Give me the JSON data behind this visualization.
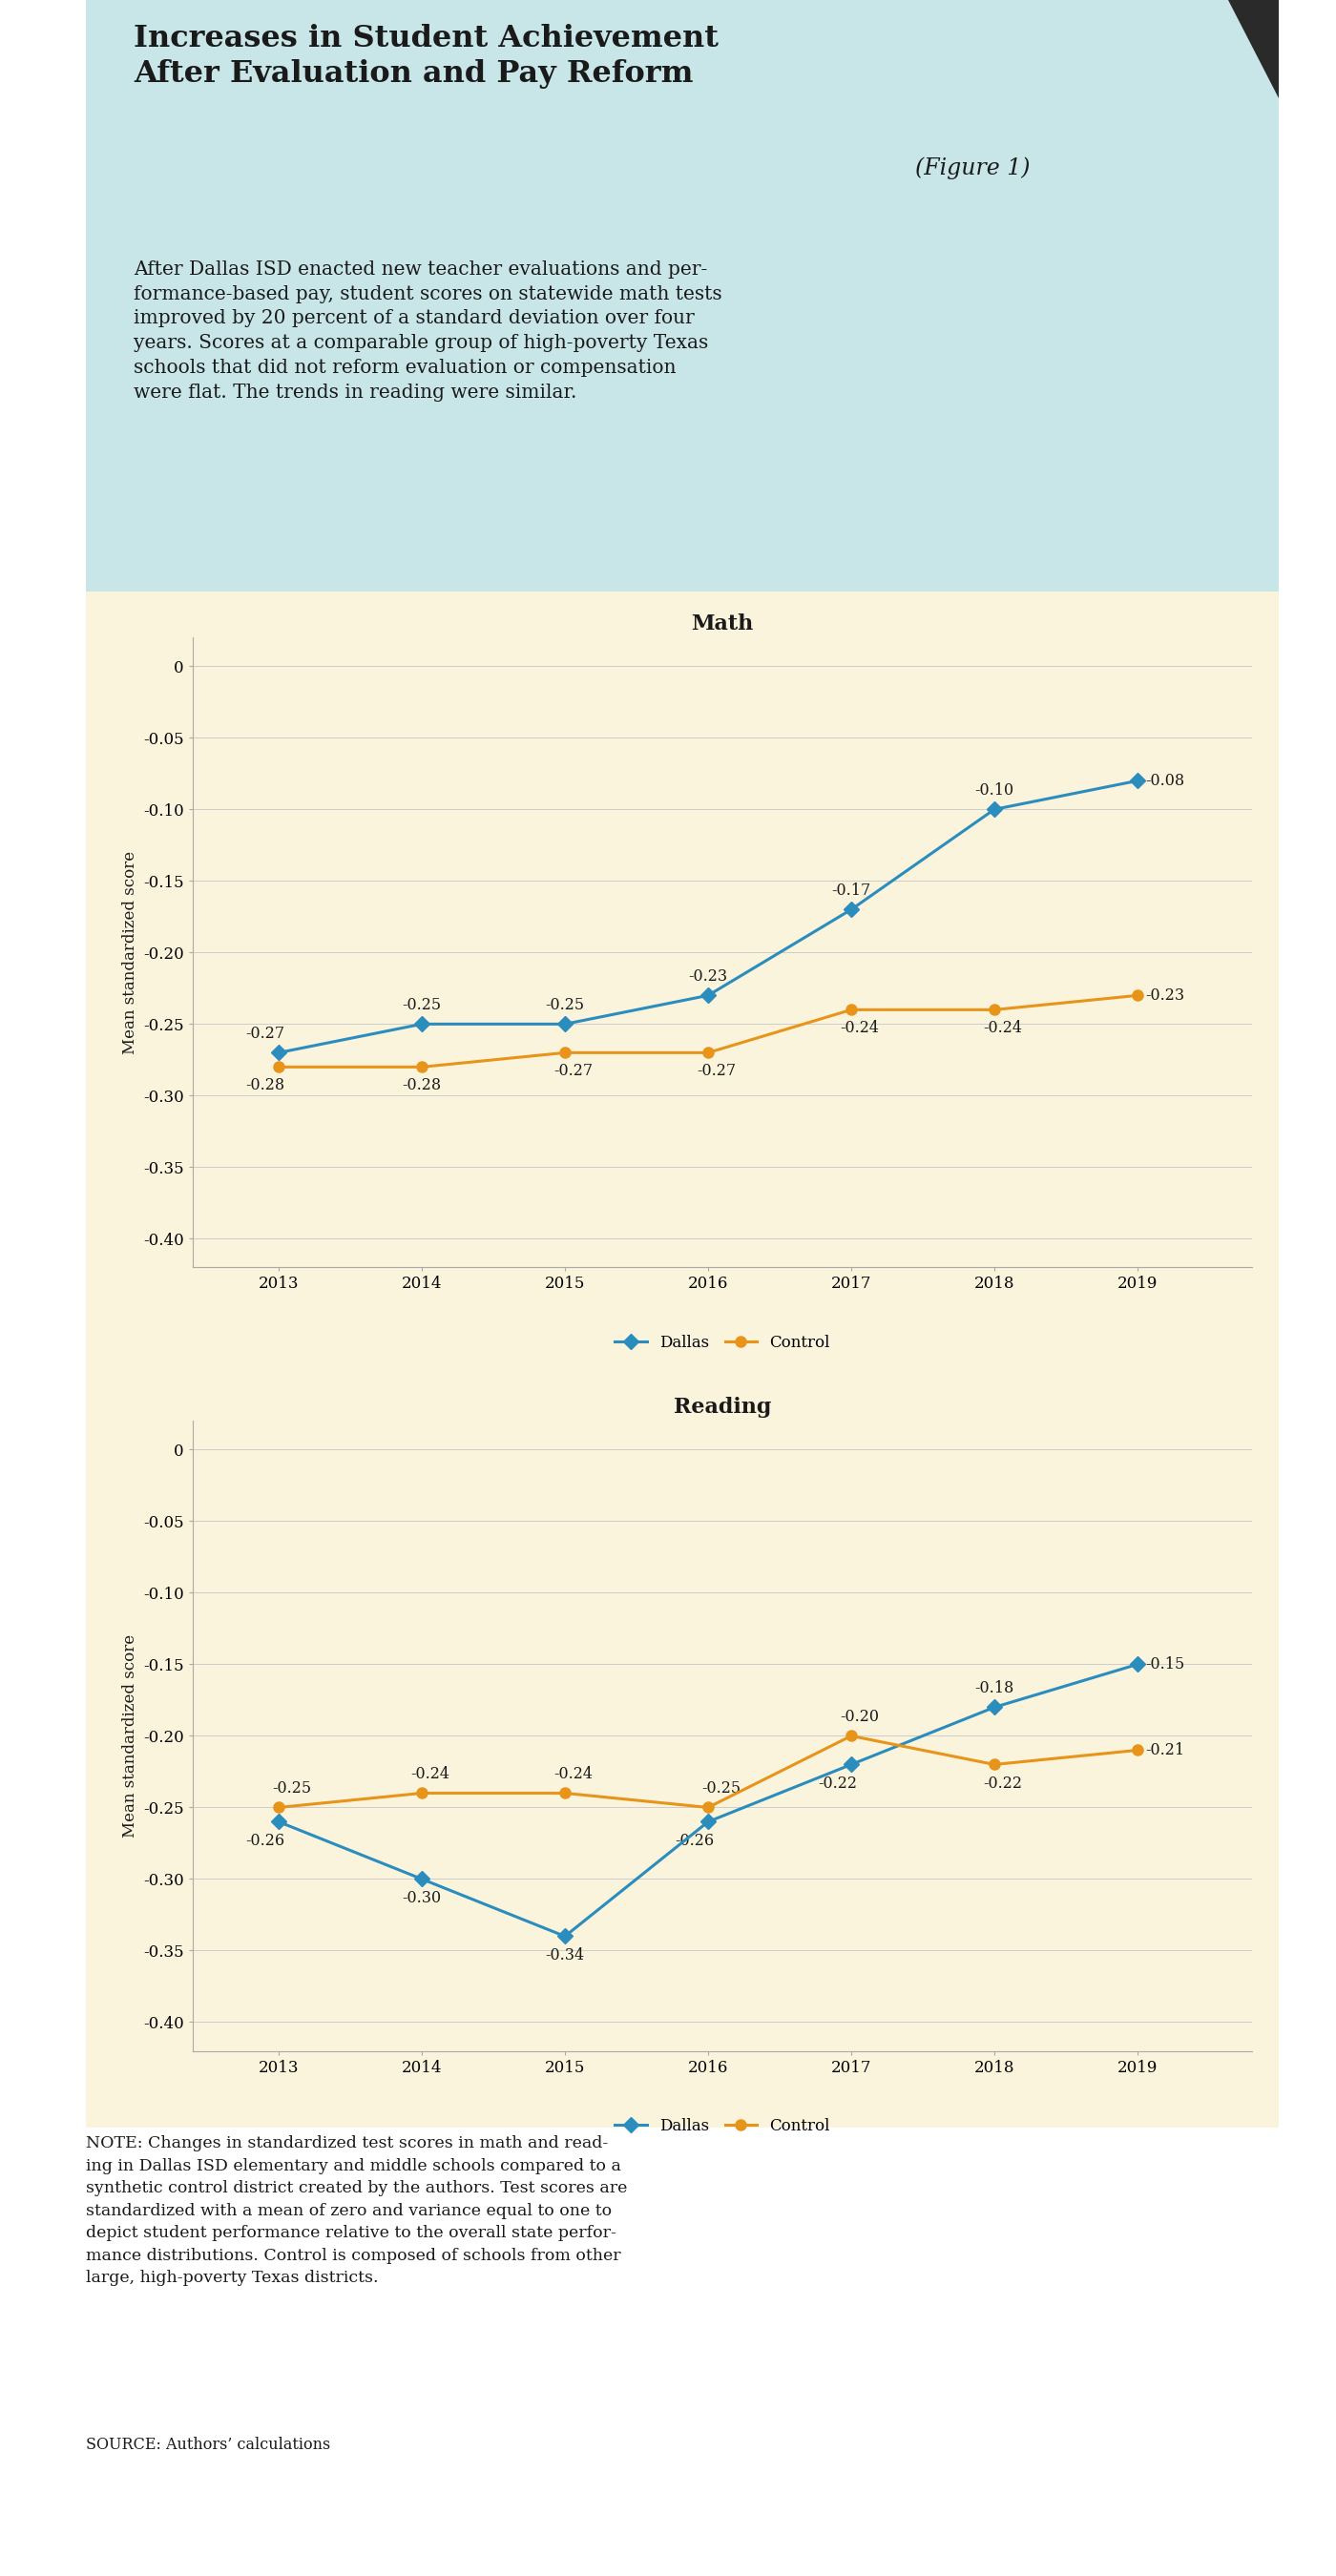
{
  "title_bold": "Increases in Student Achievement\nAfter Evaluation and Pay Reform",
  "title_italic": "(Figure 1)",
  "subtitle_lines": [
    "After Dallas ISD enacted new teacher evaluations and per-",
    "formance-based pay, student scores on statewide math tests",
    "improved by 20 percent of a standard deviation over four",
    "years. Scores at a comparable group of high-poverty Texas",
    "schools that did not reform evaluation or compensation",
    "were flat. The trends in reading were similar."
  ],
  "note_lines": [
    "NOTE: Changes in standardized test scores in math and read-",
    "ing in Dallas ISD elementary and middle schools compared to a",
    "synthetic control district created by the authors. Test scores are",
    "standardized with a mean of zero and variance equal to one to",
    "depict student performance relative to the overall state perfor-",
    "mance distributions. Control is composed of schools from other",
    "large, high-poverty Texas districts."
  ],
  "source": "SOURCE: Authors’ calculations",
  "years": [
    2013,
    2014,
    2015,
    2016,
    2017,
    2018,
    2019
  ],
  "math_dallas": [
    -0.27,
    -0.25,
    -0.25,
    -0.23,
    -0.17,
    -0.1,
    -0.08
  ],
  "math_control": [
    -0.28,
    -0.28,
    -0.27,
    -0.27,
    -0.24,
    -0.24,
    -0.23
  ],
  "reading_dallas": [
    -0.26,
    -0.3,
    -0.34,
    -0.26,
    -0.22,
    -0.18,
    -0.15
  ],
  "reading_control": [
    -0.25,
    -0.24,
    -0.24,
    -0.25,
    -0.2,
    -0.22,
    -0.21
  ],
  "dallas_color": "#2B8CBE",
  "control_color": "#E8941A",
  "math_chart_title": "Math",
  "reading_chart_title": "Reading",
  "ylabel": "Mean standardized score",
  "ylim": [
    -0.42,
    0.02
  ],
  "yticks": [
    0,
    -0.05,
    -0.1,
    -0.15,
    -0.2,
    -0.25,
    -0.3,
    -0.35,
    -0.4
  ],
  "header_bg": "#C8E6E8",
  "chart_bg": "#FAF4DC",
  "outer_bg": "#FFFFFF",
  "math_label_dallas": [
    [
      2013,
      -0.27,
      -10,
      8,
      "center",
      "bottom"
    ],
    [
      2014,
      -0.25,
      0,
      8,
      "center",
      "bottom"
    ],
    [
      2015,
      -0.25,
      0,
      8,
      "center",
      "bottom"
    ],
    [
      2016,
      -0.23,
      0,
      8,
      "center",
      "bottom"
    ],
    [
      2017,
      -0.17,
      0,
      8,
      "center",
      "bottom"
    ],
    [
      2018,
      -0.1,
      0,
      8,
      "center",
      "bottom"
    ],
    [
      2019,
      -0.08,
      6,
      0,
      "left",
      "center"
    ]
  ],
  "math_label_control": [
    [
      2013,
      -0.28,
      -10,
      -8,
      "center",
      "top"
    ],
    [
      2014,
      -0.28,
      0,
      -8,
      "center",
      "top"
    ],
    [
      2015,
      -0.27,
      6,
      -8,
      "center",
      "top"
    ],
    [
      2016,
      -0.27,
      6,
      -8,
      "center",
      "top"
    ],
    [
      2017,
      -0.24,
      6,
      -8,
      "center",
      "top"
    ],
    [
      2018,
      -0.24,
      6,
      -8,
      "center",
      "top"
    ],
    [
      2019,
      -0.23,
      6,
      0,
      "left",
      "center"
    ]
  ],
  "read_label_dallas": [
    [
      2013,
      -0.26,
      -10,
      -8,
      "center",
      "top"
    ],
    [
      2014,
      -0.3,
      0,
      -8,
      "center",
      "top"
    ],
    [
      2015,
      -0.34,
      0,
      -8,
      "center",
      "top"
    ],
    [
      2016,
      -0.26,
      -10,
      -8,
      "center",
      "top"
    ],
    [
      2017,
      -0.22,
      -10,
      -8,
      "center",
      "top"
    ],
    [
      2018,
      -0.18,
      0,
      8,
      "center",
      "bottom"
    ],
    [
      2019,
      -0.15,
      6,
      0,
      "left",
      "center"
    ]
  ],
  "read_label_control": [
    [
      2013,
      -0.25,
      10,
      8,
      "center",
      "bottom"
    ],
    [
      2014,
      -0.24,
      6,
      8,
      "center",
      "bottom"
    ],
    [
      2015,
      -0.24,
      6,
      8,
      "center",
      "bottom"
    ],
    [
      2016,
      -0.25,
      10,
      8,
      "center",
      "bottom"
    ],
    [
      2017,
      -0.2,
      6,
      8,
      "center",
      "bottom"
    ],
    [
      2018,
      -0.22,
      6,
      -8,
      "center",
      "top"
    ],
    [
      2019,
      -0.21,
      6,
      0,
      "left",
      "center"
    ]
  ]
}
